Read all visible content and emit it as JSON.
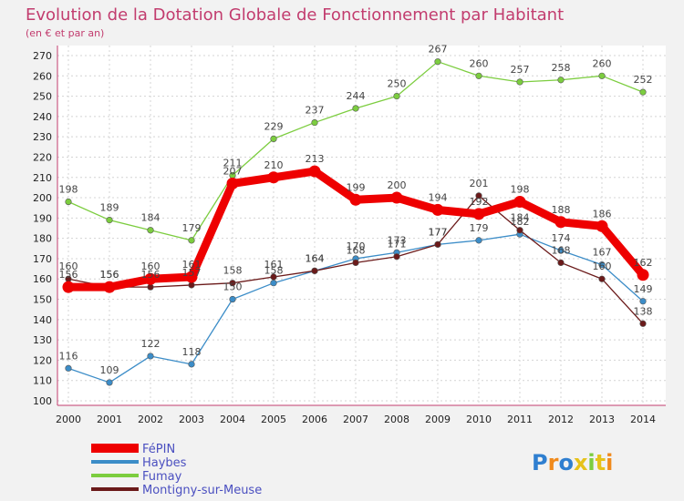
{
  "chart_data": {
    "type": "line",
    "title": "Evolution de la Dotation Globale de Fonctionnement par Habitant",
    "subtitle": "(en € et par an)",
    "xlabel": "",
    "ylabel": "",
    "x": [
      "2000",
      "2001",
      "2002",
      "2003",
      "2004",
      "2005",
      "2006",
      "2007",
      "2008",
      "2009",
      "2010",
      "2011",
      "2012",
      "2013",
      "2014"
    ],
    "ylim": [
      100,
      270
    ],
    "yticks": [
      "100",
      "110",
      "120",
      "130",
      "140",
      "150",
      "160",
      "170",
      "180",
      "190",
      "200",
      "210",
      "220",
      "230",
      "240",
      "250",
      "260",
      "270"
    ],
    "grid": true,
    "legend_position": "bottom-left",
    "series": [
      {
        "name": "Fumay",
        "color": "#7ccd3f",
        "values": [
          198,
          189,
          184,
          179,
          211,
          229,
          237,
          244,
          250,
          267,
          260,
          257,
          258,
          260,
          252
        ]
      },
      {
        "name": "Haybes",
        "color": "#3c8dc8",
        "values": [
          116,
          109,
          122,
          118,
          150,
          158,
          164,
          170,
          173,
          177,
          179,
          182,
          174,
          167,
          149
        ]
      },
      {
        "name": "Montigny-sur-Meuse",
        "color": "#6b1a1a",
        "values": [
          160,
          156,
          156,
          157,
          158,
          161,
          164,
          168,
          171,
          177,
          201,
          184,
          168,
          160,
          138
        ]
      },
      {
        "name": "FéPIN",
        "color": "#ee0000",
        "values": [
          156,
          156,
          160,
          161,
          207,
          210,
          213,
          199,
          200,
          194,
          192,
          198,
          188,
          186,
          162
        ]
      }
    ]
  },
  "logo": {
    "text": "Proxiti"
  }
}
